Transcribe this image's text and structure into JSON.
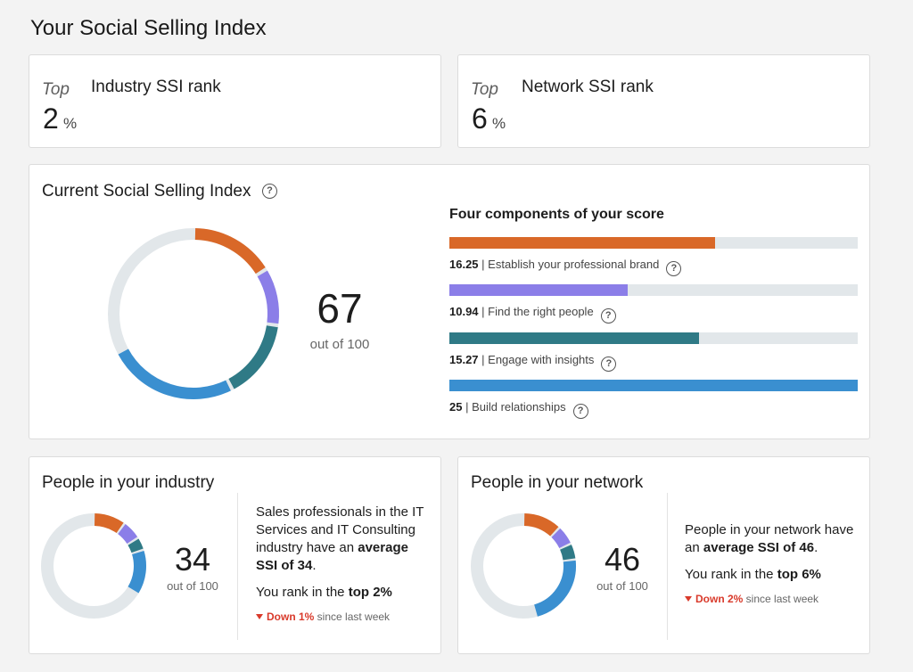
{
  "page_title": "Your Social Selling Index",
  "industry_rank": {
    "prefix": "Top",
    "label": "Industry SSI rank",
    "value": "2",
    "unit": "%"
  },
  "network_rank": {
    "prefix": "Top",
    "label": "Network SSI rank",
    "value": "6",
    "unit": "%"
  },
  "current": {
    "title": "Current Social Selling Index",
    "help_icon": "question-circle-icon",
    "score": "67",
    "score_sub": "out of 100",
    "components_title": "Four components of your score",
    "components": [
      {
        "value": "16.25",
        "sep": " | ",
        "label": "Establish your professional brand",
        "fraction": 0.65,
        "color": "#d96828"
      },
      {
        "value": "10.94",
        "sep": " | ",
        "label": "Find the right people",
        "fraction": 0.4376,
        "color": "#8b7ee8"
      },
      {
        "value": "15.27",
        "sep": " | ",
        "label": "Engage with insights",
        "fraction": 0.6108,
        "color": "#2f7a86"
      },
      {
        "value": "25",
        "sep": " | ",
        "label": "Build relationships",
        "fraction": 1.0,
        "color": "#3a8fd0"
      }
    ]
  },
  "industry": {
    "title": "People in your industry",
    "score": "34",
    "score_sub": "out of 100",
    "desc_pre": "Sales professionals in the IT Services and IT Consulting industry have an ",
    "desc_bold": "average SSI of 34",
    "desc_post": ".",
    "rank_pre": "You rank in the ",
    "rank_bold": "top 2%",
    "trend_down": "Down 1%",
    "trend_post": " since last week",
    "segments": [
      0.1,
      0.06,
      0.04,
      0.14
    ]
  },
  "network": {
    "title": "People in your network",
    "score": "46",
    "score_sub": "out of 100",
    "desc_pre": "People in your network have an ",
    "desc_bold": "average SSI of 46",
    "desc_post": ".",
    "rank_pre": "You rank in the ",
    "rank_bold": "top 6%",
    "trend_down": "Down 2%",
    "trend_post": " since last week",
    "segments": [
      0.12,
      0.06,
      0.05,
      0.23
    ]
  },
  "colors": {
    "brand_orange": "#d96828",
    "purple": "#8b7ee8",
    "teal": "#2f7a86",
    "blue": "#3a8fd0",
    "track": "#e2e7ea",
    "down_red": "#d93a2b"
  }
}
